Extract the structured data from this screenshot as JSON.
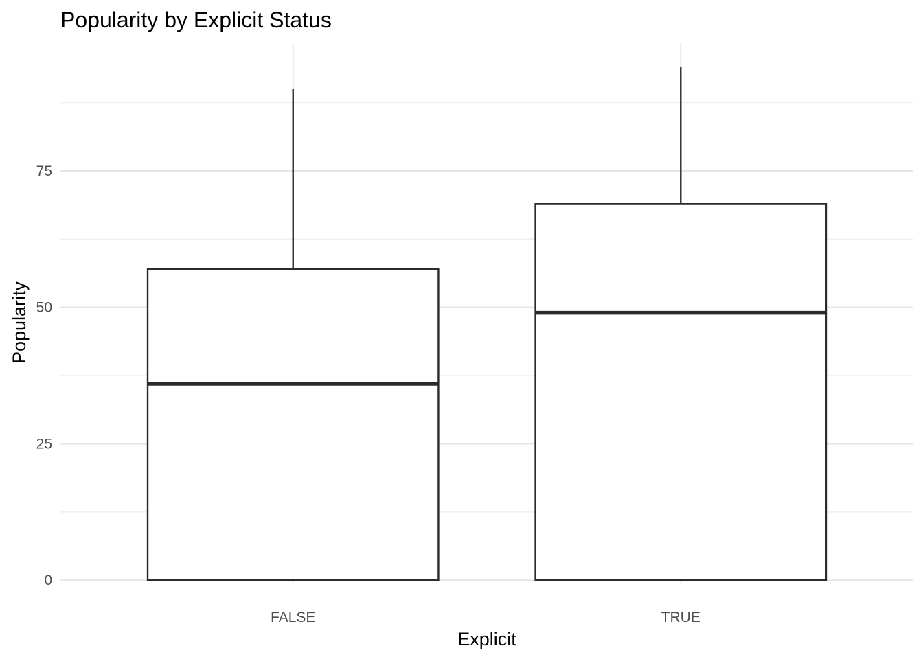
{
  "chart_data": {
    "type": "box",
    "title": "Popularity by Explicit Status",
    "xlabel": "Explicit",
    "ylabel": "Popularity",
    "categories": [
      "FALSE",
      "TRUE"
    ],
    "ylim": [
      -0.6,
      98.5
    ],
    "y_ticks": [
      0,
      25,
      50,
      75
    ],
    "y_minor_ticks": [
      12.5,
      37.5,
      62.5,
      87.5
    ],
    "grid": true,
    "legend": "none",
    "boxes": [
      {
        "category": "FALSE",
        "min": 0,
        "q1": 0,
        "median": 36,
        "q3": 57,
        "max": 90
      },
      {
        "category": "TRUE",
        "min": 0,
        "q1": 0,
        "median": 49,
        "q3": 69,
        "max": 94
      }
    ],
    "colors": {
      "box_stroke": "#2b2b2b",
      "box_fill": "#ffffff",
      "grid": "#e5e5e5",
      "tick_text": "#4d4d4d"
    }
  }
}
